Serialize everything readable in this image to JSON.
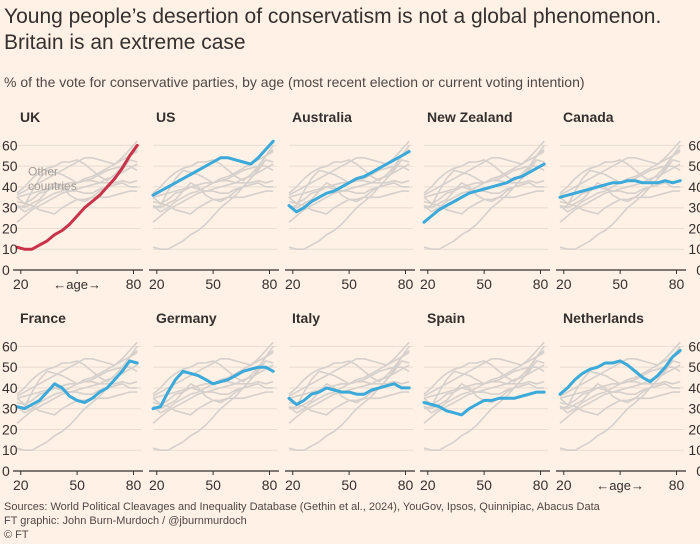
{
  "header": {
    "title_line1": "Young people’s desertion of conservatism is not a global phenomenon.",
    "title_line2": "Britain is an extreme case",
    "subtitle": "% of the vote for conservative parties, by age (most recent election or current voting intention)"
  },
  "footer": {
    "sources": "Sources: World Political Cleavages and Inequality Database (Gethin et al., 2024), YouGov, Ipsos, Quinnipiac, Abacus Data",
    "credit": "FT graphic: John Burn-Murdoch / @jburnmurdoch",
    "copyright": "© FT"
  },
  "colors": {
    "background": "#fff1e5",
    "highlight_uk": "#c8334a",
    "highlight_other": "#3ba9d9",
    "comparison_lines": "#d6d0cc",
    "axis": "#33302e",
    "gridline": "#e6ddd3",
    "text": "#33302e"
  },
  "chart_data": {
    "type": "line",
    "x_label": "age",
    "x_ticks": [
      20,
      50,
      80
    ],
    "y_ticks": [
      0,
      10,
      20,
      30,
      40,
      50,
      60
    ],
    "xlim": [
      18,
      84
    ],
    "ylim": [
      0,
      65
    ],
    "other_countries_label_line1": "Other",
    "other_countries_label_line2": "countries",
    "age_label_left": "←age→",
    "x": [
      18,
      22,
      26,
      30,
      34,
      38,
      42,
      46,
      50,
      54,
      58,
      62,
      66,
      70,
      74,
      78,
      82
    ],
    "series": [
      {
        "name": "UK",
        "values": [
          11,
          10,
          10,
          12,
          14,
          17,
          19,
          22,
          26,
          30,
          33,
          36,
          40,
          44,
          49,
          55,
          60
        ]
      },
      {
        "name": "US",
        "values": [
          36,
          38,
          40,
          42,
          44,
          46,
          48,
          50,
          52,
          54,
          54,
          53,
          52,
          51,
          54,
          58,
          62
        ]
      },
      {
        "name": "Australia",
        "values": [
          31,
          28,
          30,
          33,
          35,
          37,
          38,
          40,
          42,
          44,
          45,
          47,
          49,
          51,
          53,
          55,
          57
        ]
      },
      {
        "name": "New Zealand",
        "values": [
          23,
          26,
          29,
          31,
          33,
          35,
          37,
          38,
          39,
          40,
          41,
          42,
          44,
          45,
          47,
          49,
          51
        ]
      },
      {
        "name": "Canada",
        "values": [
          35,
          36,
          37,
          38,
          39,
          40,
          41,
          42,
          42,
          43,
          43,
          42,
          42,
          42,
          43,
          42,
          43
        ]
      },
      {
        "name": "France",
        "values": [
          31,
          30,
          32,
          34,
          38,
          42,
          40,
          36,
          34,
          33,
          35,
          38,
          40,
          44,
          48,
          53,
          52
        ]
      },
      {
        "name": "Germany",
        "values": [
          30,
          31,
          38,
          44,
          48,
          47,
          46,
          44,
          42,
          43,
          44,
          46,
          48,
          49,
          50,
          50,
          48
        ]
      },
      {
        "name": "Italy",
        "values": [
          35,
          32,
          34,
          37,
          38,
          40,
          39,
          38,
          38,
          37,
          37,
          39,
          40,
          41,
          42,
          40,
          40
        ]
      },
      {
        "name": "Spain",
        "values": [
          33,
          32,
          31,
          29,
          28,
          27,
          30,
          32,
          34,
          34,
          35,
          35,
          35,
          36,
          37,
          38,
          38
        ]
      },
      {
        "name": "Netherlands",
        "values": [
          37,
          40,
          44,
          47,
          49,
          50,
          52,
          52,
          53,
          51,
          48,
          45,
          43,
          46,
          50,
          55,
          58
        ]
      }
    ]
  }
}
